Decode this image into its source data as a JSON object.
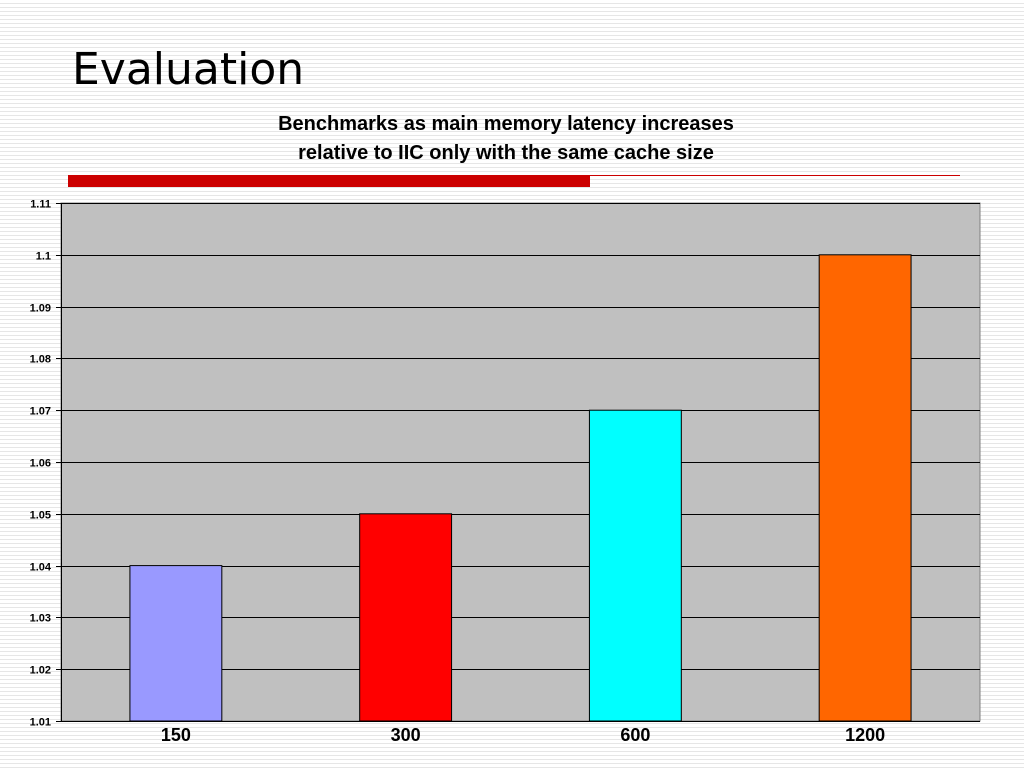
{
  "slide": {
    "title": "Evaluation",
    "accent_color": "#cc0000"
  },
  "chart_data": {
    "type": "bar",
    "title_lines": [
      "Benchmarks as main memory latency increases",
      "relative to IIC only with the same cache size"
    ],
    "categories": [
      "150",
      "300",
      "600",
      "1200"
    ],
    "values": [
      1.04,
      1.05,
      1.07,
      1.1
    ],
    "bar_colors": [
      "#9999ff",
      "#ff0000",
      "#00ffff",
      "#ff6600"
    ],
    "yticks": [
      "1.01",
      "1.02",
      "1.03",
      "1.04",
      "1.05",
      "1.06",
      "1.07",
      "1.08",
      "1.09",
      "1.1",
      "1.11"
    ],
    "ylim": [
      1.01,
      1.11
    ],
    "grid": true,
    "legend": "none",
    "plot_background": "#c0c0c0",
    "xlabel": "",
    "ylabel": ""
  }
}
